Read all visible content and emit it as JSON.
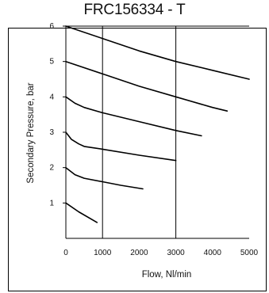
{
  "chart_data": {
    "type": "line",
    "title": "FRC156334 - T",
    "xlabel": "Flow, Nl/min",
    "ylabel": "Secondary Pressure, bar",
    "xlim": [
      0,
      5000
    ],
    "ylim": [
      0,
      6
    ],
    "x_ticks": [
      0,
      1000,
      2000,
      3000,
      4000,
      5000
    ],
    "y_ticks": [
      1,
      2,
      3,
      4,
      5,
      6
    ],
    "grid": "vertical-major",
    "legend": "none",
    "line_color": "#000000",
    "series": [
      {
        "x": [
          0,
          350,
          850
        ],
        "y": [
          1.0,
          0.75,
          0.45
        ]
      },
      {
        "x": [
          0,
          250,
          500,
          1000,
          1500,
          2100
        ],
        "y": [
          2.0,
          1.8,
          1.7,
          1.6,
          1.5,
          1.4
        ]
      },
      {
        "x": [
          0,
          150,
          350,
          500,
          1000,
          2000,
          3000
        ],
        "y": [
          3.0,
          2.8,
          2.67,
          2.6,
          2.52,
          2.35,
          2.2
        ]
      },
      {
        "x": [
          0,
          250,
          500,
          1000,
          2000,
          3000,
          3700
        ],
        "y": [
          4.0,
          3.82,
          3.7,
          3.55,
          3.3,
          3.05,
          2.9
        ]
      },
      {
        "x": [
          0,
          1000,
          2000,
          3000,
          4000,
          4400
        ],
        "y": [
          5.0,
          4.65,
          4.3,
          4.0,
          3.7,
          3.6
        ]
      },
      {
        "x": [
          0,
          1000,
          2000,
          3000,
          4000,
          5000
        ],
        "y": [
          6.0,
          5.65,
          5.3,
          5.0,
          4.75,
          4.5
        ]
      }
    ]
  }
}
